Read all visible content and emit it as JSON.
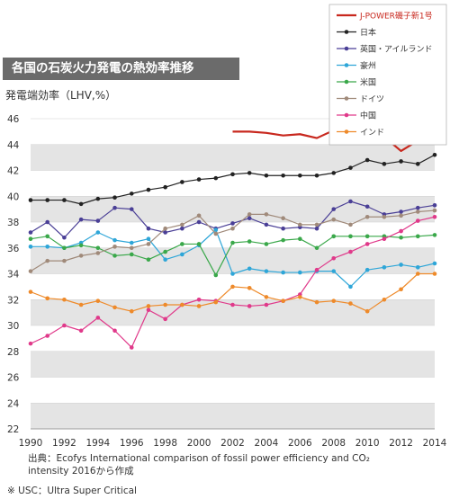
{
  "chart_data": {
    "type": "line",
    "title": "各国の石炭火力発電の熱効率推移",
    "ylabel": "発電端効率（LHV,%）",
    "ylim": [
      22,
      46
    ],
    "yticks": [
      22,
      24,
      26,
      28,
      30,
      32,
      34,
      36,
      38,
      40,
      42,
      44,
      46
    ],
    "xlim": [
      1990,
      2014
    ],
    "xticks": [
      1990,
      1992,
      1994,
      1996,
      1998,
      2000,
      2002,
      2004,
      2006,
      2008,
      2010,
      2012,
      2014
    ],
    "grid": "horizontal alternating bands",
    "legend_position": "top-right",
    "series": [
      {
        "name": "J-POWER磯子新1号",
        "color": "#c8281e",
        "marker": "none",
        "x": [
          2002,
          2003,
          2004,
          2005,
          2006,
          2007,
          2008,
          2009,
          2010,
          2011,
          2012,
          2013,
          2014
        ],
        "values": [
          45.0,
          45.0,
          44.9,
          44.7,
          44.8,
          44.5,
          45.1,
          44.9,
          44.6,
          44.6,
          43.5,
          44.3,
          45.0
        ]
      },
      {
        "name": "日本",
        "color": "#222222",
        "marker": "circle",
        "x": [
          1990,
          1991,
          1992,
          1993,
          1994,
          1995,
          1996,
          1997,
          1998,
          1999,
          2000,
          2001,
          2002,
          2003,
          2004,
          2005,
          2006,
          2007,
          2008,
          2009,
          2010,
          2011,
          2012,
          2013,
          2014
        ],
        "values": [
          39.7,
          39.7,
          39.7,
          39.4,
          39.8,
          39.9,
          40.2,
          40.5,
          40.7,
          41.1,
          41.3,
          41.4,
          41.7,
          41.8,
          41.6,
          41.6,
          41.6,
          41.6,
          41.8,
          42.2,
          42.8,
          42.5,
          42.7,
          42.5,
          43.2
        ]
      },
      {
        "name": "英国・アイルランド",
        "color": "#4a3f96",
        "marker": "circle",
        "x": [
          1990,
          1991,
          1992,
          1993,
          1994,
          1995,
          1996,
          1997,
          1998,
          1999,
          2000,
          2001,
          2002,
          2003,
          2004,
          2005,
          2006,
          2007,
          2008,
          2009,
          2010,
          2011,
          2012,
          2013,
          2014
        ],
        "values": [
          37.2,
          38.0,
          36.8,
          38.2,
          38.1,
          39.1,
          39.0,
          37.5,
          37.2,
          37.5,
          38.0,
          37.5,
          37.9,
          38.3,
          37.8,
          37.5,
          37.6,
          37.5,
          39.0,
          39.6,
          39.2,
          38.6,
          38.8,
          39.1,
          39.3
        ]
      },
      {
        "name": "豪州",
        "color": "#2ea6d8",
        "marker": "circle",
        "x": [
          1990,
          1991,
          1992,
          1993,
          1994,
          1995,
          1996,
          1997,
          1998,
          1999,
          2000,
          2001,
          2002,
          2003,
          2004,
          2005,
          2006,
          2007,
          2008,
          2009,
          2010,
          2011,
          2012,
          2013,
          2014
        ],
        "values": [
          36.1,
          36.1,
          36.0,
          36.4,
          37.2,
          36.6,
          36.4,
          36.7,
          35.1,
          35.5,
          36.2,
          37.4,
          34.0,
          34.4,
          34.2,
          34.1,
          34.1,
          34.2,
          34.2,
          33.0,
          34.3,
          34.5,
          34.7,
          34.5,
          34.8
        ]
      },
      {
        "name": "米国",
        "color": "#3aa84a",
        "marker": "circle",
        "x": [
          1990,
          1991,
          1992,
          1993,
          1994,
          1995,
          1996,
          1997,
          1998,
          1999,
          2000,
          2001,
          2002,
          2003,
          2004,
          2005,
          2006,
          2007,
          2008,
          2009,
          2010,
          2011,
          2012,
          2013,
          2014
        ],
        "values": [
          36.7,
          36.9,
          36.0,
          36.2,
          36.0,
          35.4,
          35.5,
          35.1,
          35.7,
          36.3,
          36.3,
          33.9,
          36.4,
          36.5,
          36.3,
          36.6,
          36.7,
          36.0,
          36.9,
          36.9,
          36.9,
          36.9,
          36.8,
          36.9,
          37.0
        ]
      },
      {
        "name": "ドイツ",
        "color": "#a08a7a",
        "marker": "circle",
        "x": [
          1990,
          1991,
          1992,
          1993,
          1994,
          1995,
          1996,
          1997,
          1998,
          1999,
          2000,
          2001,
          2002,
          2003,
          2004,
          2005,
          2006,
          2007,
          2008,
          2009,
          2010,
          2011,
          2012,
          2013,
          2014
        ],
        "values": [
          34.2,
          35.0,
          35.0,
          35.4,
          35.6,
          36.1,
          36.0,
          36.3,
          37.5,
          37.8,
          38.5,
          37.1,
          37.5,
          38.6,
          38.6,
          38.3,
          37.8,
          37.8,
          38.2,
          37.8,
          38.4,
          38.4,
          38.5,
          38.8,
          38.9
        ]
      },
      {
        "name": "中国",
        "color": "#e0398a",
        "marker": "circle",
        "x": [
          1990,
          1991,
          1992,
          1993,
          1994,
          1995,
          1996,
          1997,
          1998,
          1999,
          2000,
          2001,
          2002,
          2003,
          2004,
          2005,
          2006,
          2007,
          2008,
          2009,
          2010,
          2011,
          2012,
          2013,
          2014
        ],
        "values": [
          28.6,
          29.2,
          30.0,
          29.6,
          30.6,
          29.6,
          28.3,
          31.2,
          30.5,
          31.6,
          32.0,
          31.9,
          31.6,
          31.5,
          31.6,
          31.9,
          32.4,
          34.3,
          35.2,
          35.7,
          36.3,
          36.7,
          37.3,
          38.1,
          38.4
        ]
      },
      {
        "name": "インド",
        "color": "#ee8a2a",
        "marker": "circle",
        "x": [
          1990,
          1991,
          1992,
          1993,
          1994,
          1995,
          1996,
          1997,
          1998,
          1999,
          2000,
          2001,
          2002,
          2003,
          2004,
          2005,
          2006,
          2007,
          2008,
          2009,
          2010,
          2011,
          2012,
          2013,
          2014
        ],
        "values": [
          32.6,
          32.1,
          32.0,
          31.6,
          31.9,
          31.4,
          31.1,
          31.5,
          31.6,
          31.6,
          31.5,
          31.8,
          33.0,
          32.9,
          32.2,
          31.9,
          32.2,
          31.8,
          31.9,
          31.7,
          31.1,
          32.0,
          32.8,
          34.0,
          34.0
        ]
      }
    ]
  },
  "source": {
    "line1": "出典：Ecofys International comparison of fossil power efficiency and CO₂",
    "line2": "intensity 2016から作成"
  },
  "note": "※ USC：Ultra Super Critical"
}
